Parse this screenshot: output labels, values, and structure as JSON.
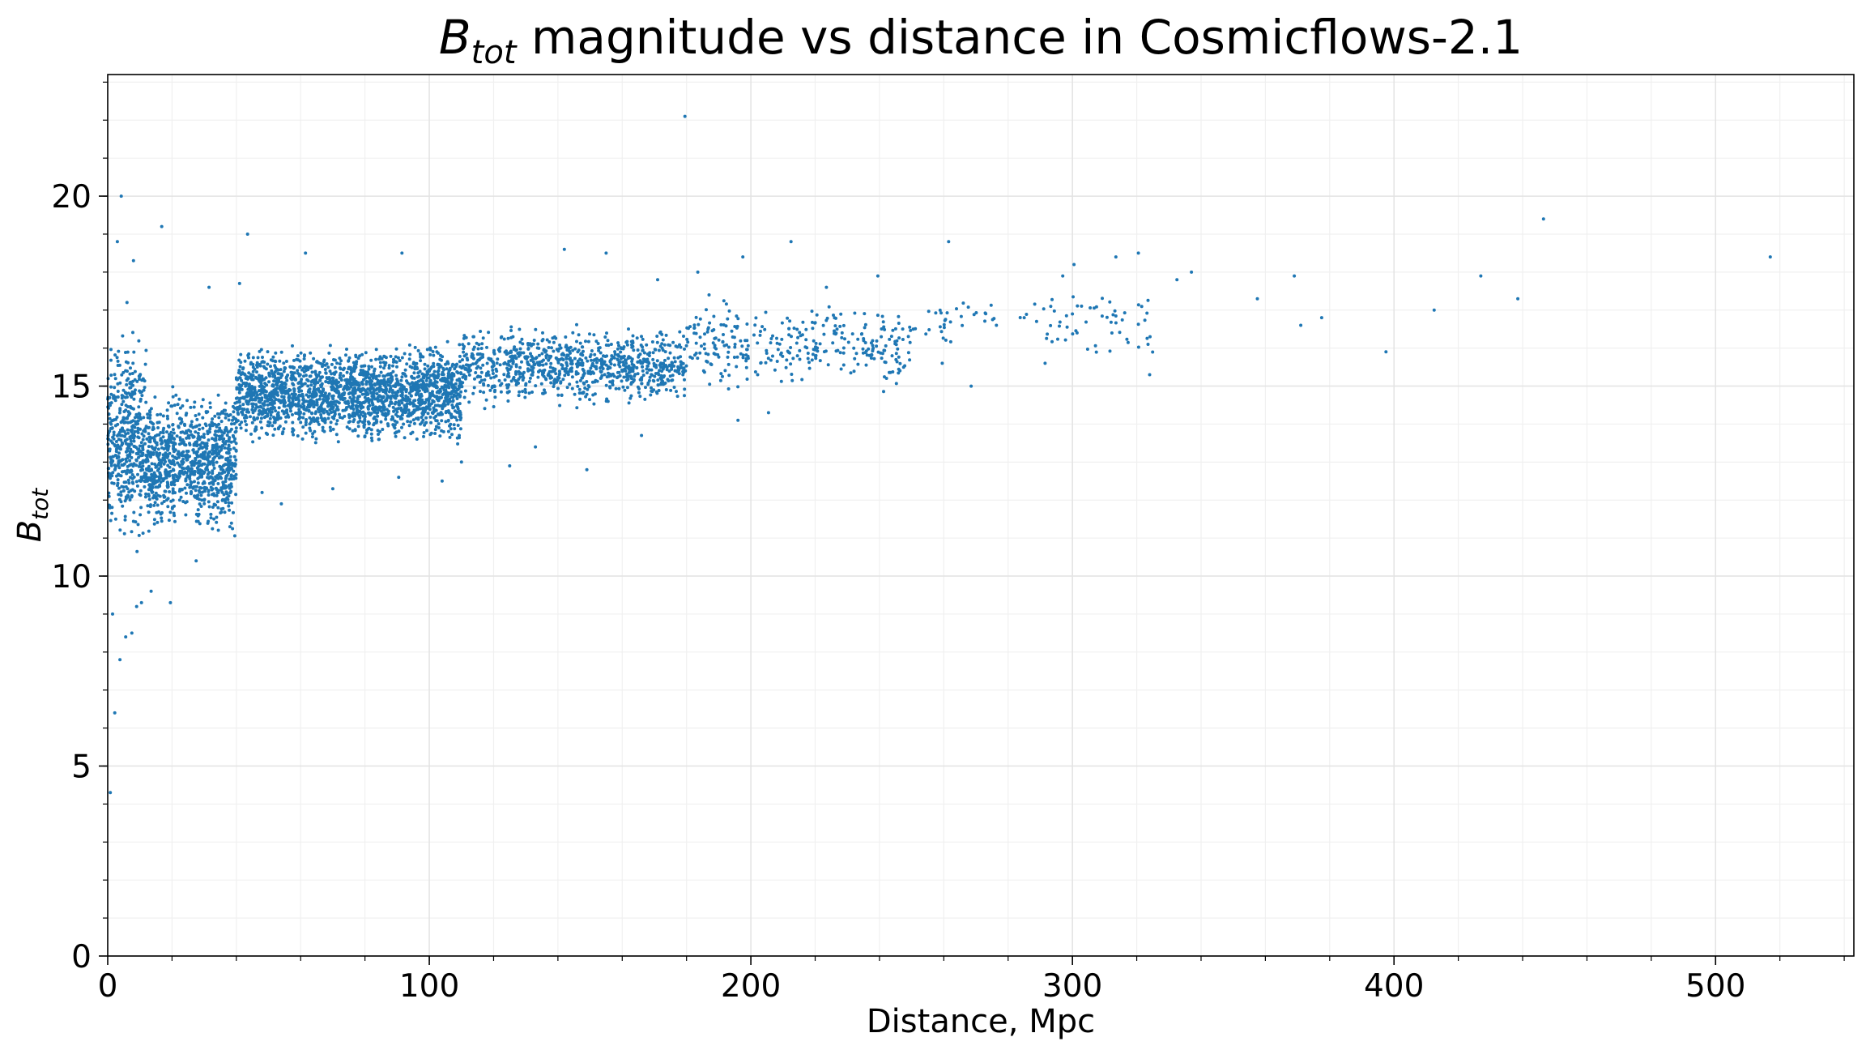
{
  "chart_data": {
    "type": "scatter",
    "title": {
      "symbol": "B",
      "subscript": "tot",
      "text": " magnitude vs distance in Cosmicflows-2.1"
    },
    "xlabel": "Distance, Mpc",
    "ylabel": {
      "symbol": "B",
      "subscript": "tot"
    },
    "xlim": [
      0,
      543
    ],
    "ylim": [
      0,
      23.2
    ],
    "x_ticks": [
      0,
      100,
      200,
      300,
      400,
      500
    ],
    "x_tick_labels": [
      "0",
      "100",
      "200",
      "300",
      "400",
      "500"
    ],
    "y_ticks": [
      0,
      5,
      10,
      15,
      20
    ],
    "y_tick_labels": [
      "0",
      "5",
      "10",
      "15",
      "20"
    ],
    "x_minor_step": 20,
    "y_minor_step": 1,
    "grid": true,
    "legend": "none",
    "point_color": "#1f77b4",
    "series": [
      {
        "points": [
          [
            179.5,
            22.1
          ],
          [
            4.2,
            20.0
          ],
          [
            16.8,
            19.2
          ],
          [
            43.5,
            19.0
          ],
          [
            446.5,
            19.4
          ],
          [
            517.0,
            18.4
          ],
          [
            261.5,
            18.8
          ],
          [
            212.5,
            18.8
          ],
          [
            300.5,
            18.2
          ],
          [
            320.5,
            18.5
          ],
          [
            313.5,
            18.4
          ],
          [
            337.0,
            18.0
          ],
          [
            357.5,
            17.3
          ],
          [
            369.0,
            17.9
          ],
          [
            412.5,
            17.0
          ],
          [
            427.0,
            17.9
          ],
          [
            438.5,
            17.3
          ],
          [
            397.5,
            15.9
          ],
          [
            377.5,
            16.8
          ],
          [
            371.0,
            16.6
          ],
          [
            332.5,
            17.8
          ],
          [
            323.5,
            16.1
          ],
          [
            324.0,
            15.3
          ],
          [
            297.0,
            17.9
          ],
          [
            291.5,
            15.6
          ],
          [
            285.0,
            16.8
          ],
          [
            268.5,
            15.0
          ],
          [
            259.5,
            15.6
          ],
          [
            250.5,
            16.5
          ],
          [
            239.5,
            17.9
          ],
          [
            232.0,
            16.0
          ],
          [
            223.5,
            17.6
          ],
          [
            197.5,
            18.4
          ],
          [
            196.0,
            14.1
          ],
          [
            187.0,
            17.4
          ],
          [
            205.5,
            14.3
          ],
          [
            3.8,
            7.8
          ],
          [
            2.2,
            6.4
          ],
          [
            0.8,
            4.3
          ],
          [
            5.6,
            8.4
          ],
          [
            7.5,
            8.5
          ],
          [
            1.5,
            9.0
          ],
          [
            9.0,
            9.2
          ],
          [
            10.5,
            9.3
          ],
          [
            13.5,
            9.6
          ],
          [
            3.0,
            18.8
          ],
          [
            8.0,
            18.3
          ],
          [
            6.0,
            17.2
          ],
          [
            2.5,
            11.5
          ],
          [
            31.5,
            17.6
          ],
          [
            41.0,
            17.7
          ],
          [
            61.5,
            18.5
          ],
          [
            91.5,
            18.5
          ],
          [
            142.0,
            18.6
          ],
          [
            155.0,
            18.5
          ],
          [
            171.0,
            17.8
          ],
          [
            183.5,
            18.0
          ],
          [
            149.0,
            12.8
          ],
          [
            133.0,
            13.4
          ],
          [
            125.0,
            12.9
          ],
          [
            104.0,
            12.5
          ],
          [
            90.5,
            12.6
          ],
          [
            70.0,
            12.3
          ],
          [
            54.0,
            11.9
          ],
          [
            38.0,
            11.3
          ],
          [
            27.5,
            10.4
          ],
          [
            19.5,
            9.3
          ],
          [
            48.0,
            12.2
          ],
          [
            110.0,
            13.0
          ],
          [
            166.0,
            13.7
          ]
        ],
        "clusters": [
          {
            "x": [
              0,
              12
            ],
            "y": [
              10.2,
              16.8
            ],
            "count": 450
          },
          {
            "x": [
              12,
              40
            ],
            "y": [
              10.8,
              15.2
            ],
            "count": 950
          },
          {
            "x": [
              40,
              110
            ],
            "y": [
              13.3,
              16.3
            ],
            "count": 2000
          },
          {
            "x": [
              110,
              180
            ],
            "y": [
              14.3,
              16.7
            ],
            "count": 900
          },
          {
            "x": [
              180,
              250
            ],
            "y": [
              14.7,
              17.4
            ],
            "count": 320
          },
          {
            "x": [
              250,
              325
            ],
            "y": [
              15.5,
              17.8
            ],
            "count": 90
          }
        ]
      }
    ]
  }
}
